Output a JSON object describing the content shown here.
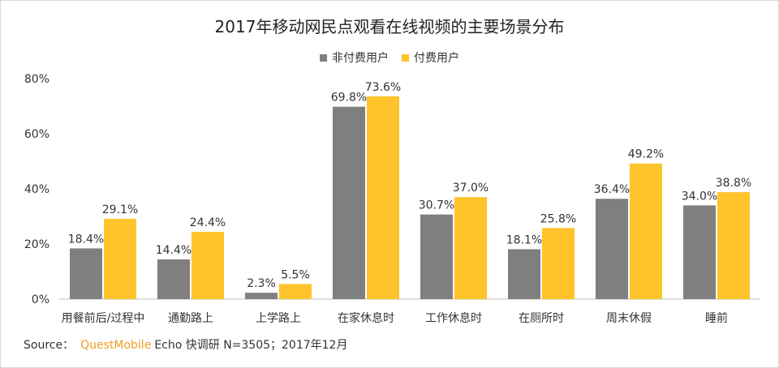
{
  "chart_data": {
    "type": "bar",
    "title": "2017年移动网民点观看在线视频的主要场景分布",
    "categories": [
      "用餐前后/过程中",
      "通勤路上",
      "上学路上",
      "在家休息时",
      "工作休息时",
      "在厕所时",
      "周末休假",
      "睡前"
    ],
    "series": [
      {
        "name": "非付费用户",
        "color": "#7f7f7f",
        "values": [
          18.4,
          14.4,
          2.3,
          69.8,
          30.7,
          18.1,
          36.4,
          34.0
        ],
        "labels": [
          "18.4%",
          "14.4%",
          "2.3%",
          "69.8%",
          "30.7%",
          "18.1%",
          "36.4%",
          "34.0%"
        ]
      },
      {
        "name": "付费用户",
        "color": "#ffc32b",
        "values": [
          29.1,
          24.4,
          5.5,
          73.6,
          37.0,
          25.8,
          49.2,
          38.8
        ],
        "labels": [
          "29.1%",
          "24.4%",
          "5.5%",
          "73.6%",
          "37.0%",
          "25.8%",
          "49.2%",
          "38.8%"
        ]
      }
    ],
    "ylim": [
      0,
      80
    ],
    "yticks": [
      "0%",
      "20%",
      "40%",
      "60%",
      "80%"
    ],
    "legend_position": "top-center",
    "grid": false
  },
  "source": {
    "prefix": "Source：",
    "brand": "QuestMobile",
    "rest": "Echo 快调研 N=3505；2017年12月"
  }
}
